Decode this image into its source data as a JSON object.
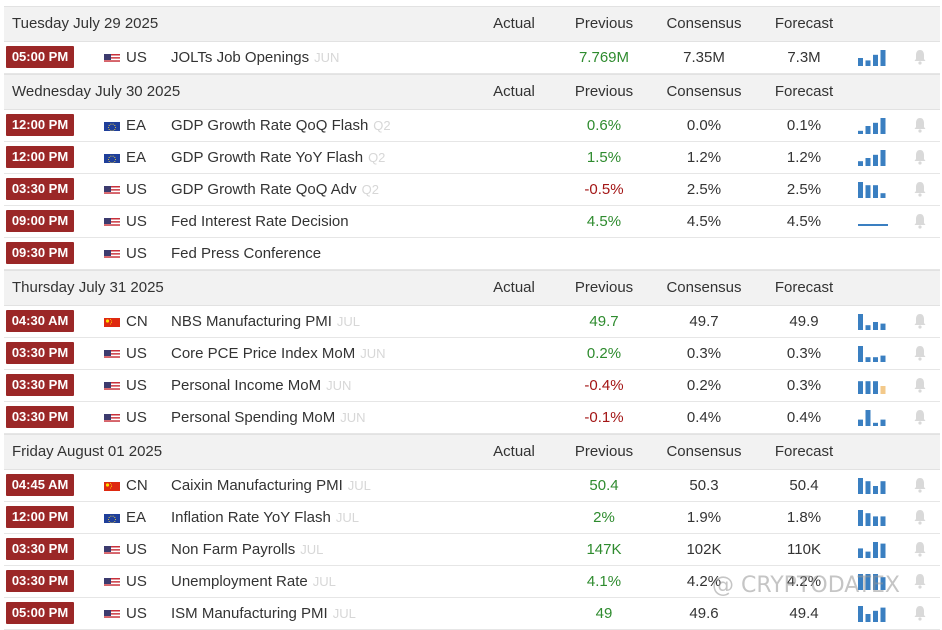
{
  "columns": {
    "actual": "Actual",
    "previous": "Previous",
    "consensus": "Consensus",
    "forecast": "Forecast"
  },
  "days": [
    {
      "date": "Tuesday July 29 2025",
      "events": [
        {
          "time": "05:00 PM",
          "country": "US",
          "name": "JOLTs Job Openings",
          "period": "JUN",
          "actual": "",
          "previous": "7.769M",
          "prev_tone": "pos",
          "consensus": "7.35M",
          "forecast": "7.3M",
          "spark": [
            0.5,
            0.35,
            0.7,
            1
          ],
          "spark_type": "bars"
        }
      ]
    },
    {
      "date": "Wednesday July 30 2025",
      "events": [
        {
          "time": "12:00 PM",
          "country": "EA",
          "name": "GDP Growth Rate QoQ Flash",
          "period": "Q2",
          "actual": "",
          "previous": "0.6%",
          "prev_tone": "pos",
          "consensus": "0.0%",
          "forecast": "0.1%",
          "spark": [
            0.2,
            0.5,
            0.7,
            1
          ],
          "spark_type": "bars"
        },
        {
          "time": "12:00 PM",
          "country": "EA",
          "name": "GDP Growth Rate YoY Flash",
          "period": "Q2",
          "actual": "",
          "previous": "1.5%",
          "prev_tone": "pos",
          "consensus": "1.2%",
          "forecast": "1.2%",
          "spark": [
            0.3,
            0.5,
            0.7,
            1
          ],
          "spark_type": "bars"
        },
        {
          "time": "03:30 PM",
          "country": "US",
          "name": "GDP Growth Rate QoQ Adv",
          "period": "Q2",
          "actual": "",
          "previous": "-0.5%",
          "prev_tone": "neg",
          "consensus": "2.5%",
          "forecast": "2.5%",
          "spark": [
            1,
            0.8,
            0.8,
            0.3
          ],
          "spark_type": "bars"
        },
        {
          "time": "09:00 PM",
          "country": "US",
          "name": "Fed Interest Rate Decision",
          "period": "",
          "actual": "",
          "previous": "4.5%",
          "prev_tone": "pos",
          "consensus": "4.5%",
          "forecast": "4.5%",
          "spark": [],
          "spark_type": "flat"
        },
        {
          "time": "09:30 PM",
          "country": "US",
          "name": "Fed Press Conference",
          "period": "",
          "actual": "",
          "previous": "",
          "prev_tone": "neu",
          "consensus": "",
          "forecast": "",
          "spark": [],
          "spark_type": "none"
        }
      ]
    },
    {
      "date": "Thursday July 31 2025",
      "events": [
        {
          "time": "04:30 AM",
          "country": "CN",
          "name": "NBS Manufacturing PMI",
          "period": "JUL",
          "actual": "",
          "previous": "49.7",
          "prev_tone": "pos",
          "consensus": "49.7",
          "forecast": "49.9",
          "spark": [
            1,
            0.3,
            0.5,
            0.4
          ],
          "spark_type": "bars"
        },
        {
          "time": "03:30 PM",
          "country": "US",
          "name": "Core PCE Price Index MoM",
          "period": "JUN",
          "actual": "",
          "previous": "0.2%",
          "prev_tone": "pos",
          "consensus": "0.3%",
          "forecast": "0.3%",
          "spark": [
            1,
            0.3,
            0.3,
            0.4
          ],
          "spark_type": "bars"
        },
        {
          "time": "03:30 PM",
          "country": "US",
          "name": "Personal Income MoM",
          "period": "JUN",
          "actual": "",
          "previous": "-0.4%",
          "prev_tone": "neg",
          "consensus": "0.2%",
          "forecast": "0.3%",
          "spark": [
            0.8,
            0.8,
            0.8,
            0.5
          ],
          "spark_type": "bars_last_neg"
        },
        {
          "time": "03:30 PM",
          "country": "US",
          "name": "Personal Spending MoM",
          "period": "JUN",
          "actual": "",
          "previous": "-0.1%",
          "prev_tone": "neg",
          "consensus": "0.4%",
          "forecast": "0.4%",
          "spark": [
            0.4,
            1,
            0.2,
            0.4
          ],
          "spark_type": "bars"
        }
      ]
    },
    {
      "date": "Friday August 01 2025",
      "events": [
        {
          "time": "04:45 AM",
          "country": "CN",
          "name": "Caixin Manufacturing PMI",
          "period": "JUL",
          "actual": "",
          "previous": "50.4",
          "prev_tone": "pos",
          "consensus": "50.3",
          "forecast": "50.4",
          "spark": [
            1,
            0.8,
            0.5,
            0.8
          ],
          "spark_type": "bars"
        },
        {
          "time": "12:00 PM",
          "country": "EA",
          "name": "Inflation Rate YoY Flash",
          "period": "JUL",
          "actual": "",
          "previous": "2%",
          "prev_tone": "pos",
          "consensus": "1.9%",
          "forecast": "1.8%",
          "spark": [
            1,
            0.8,
            0.6,
            0.6
          ],
          "spark_type": "bars"
        },
        {
          "time": "03:30 PM",
          "country": "US",
          "name": "Non Farm Payrolls",
          "period": "JUL",
          "actual": "",
          "previous": "147K",
          "prev_tone": "pos",
          "consensus": "102K",
          "forecast": "110K",
          "spark": [
            0.6,
            0.4,
            1,
            0.9
          ],
          "spark_type": "bars"
        },
        {
          "time": "03:30 PM",
          "country": "US",
          "name": "Unemployment Rate",
          "period": "JUL",
          "actual": "",
          "previous": "4.1%",
          "prev_tone": "pos",
          "consensus": "4.2%",
          "forecast": "4.2%",
          "spark": [
            1,
            1,
            1,
            0.8
          ],
          "spark_type": "bars"
        },
        {
          "time": "05:00 PM",
          "country": "US",
          "name": "ISM Manufacturing PMI",
          "period": "JUL",
          "actual": "",
          "previous": "49",
          "prev_tone": "pos",
          "consensus": "49.6",
          "forecast": "49.4",
          "spark": [
            1,
            0.5,
            0.7,
            0.9
          ],
          "spark_type": "bars"
        }
      ]
    }
  ],
  "watermark": "@ CRYPTODATEX",
  "colors": {
    "time_badge": "#9b2727",
    "positive": "#2e8b2e",
    "negative": "#a31515",
    "spark": "#3a7fc1",
    "spark_neg": "#f3c98a",
    "bell": "#d9d9d9"
  }
}
